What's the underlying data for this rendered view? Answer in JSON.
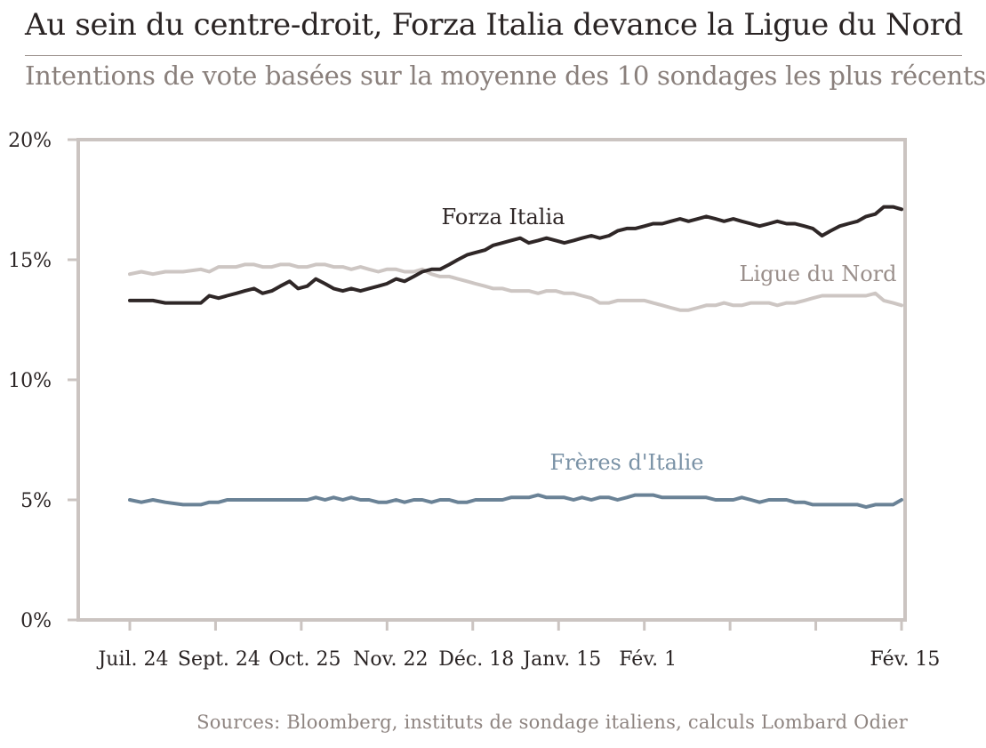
{
  "title": "Au sein du centre-droit, Forza Italia devance la Ligue du Nord",
  "subtitle": "Intentions de vote basées sur la moyenne des 10 sondages les plus récents",
  "source": "Sources: Bloomberg, instituts de sondage italiens, calculs Lombard Odier",
  "colors": {
    "frame": "#cbc4c1",
    "forza": "#2f2727",
    "ligue": "#cdc6c3",
    "freres": "#6a8296",
    "ligue_label": "#9a8f8b",
    "freres_label": "#7a92a6"
  },
  "chart_data": {
    "type": "line",
    "ylim": [
      0,
      20
    ],
    "yticks": [
      0,
      5,
      10,
      15,
      20
    ],
    "ytick_labels": [
      "0%",
      "5%",
      "10%",
      "15%",
      "20%"
    ],
    "xlim": [
      0,
      100
    ],
    "xticks": [
      {
        "x": 0,
        "label": "Juil. 24"
      },
      {
        "x": 11.11,
        "label": "Sept. 24"
      },
      {
        "x": 22.22,
        "label": "Oct. 25"
      },
      {
        "x": 33.33,
        "label": "Nov. 22"
      },
      {
        "x": 44.44,
        "label": "Déc. 18"
      },
      {
        "x": 55.56,
        "label": "Janv. 15"
      },
      {
        "x": 66.67,
        "label": "Fév. 1"
      },
      {
        "x": 77.78,
        "label": ""
      },
      {
        "x": 88.89,
        "label": ""
      },
      {
        "x": 100,
        "label": "Fév. 15"
      }
    ],
    "series": [
      {
        "name": "Forza Italia",
        "color_key": "forza",
        "x": [
          0,
          1.5,
          3,
          4.6,
          6.9,
          9.2,
          10.3,
          11.5,
          12.6,
          13.8,
          14.9,
          16.1,
          17.2,
          18.4,
          19.5,
          20.7,
          21.8,
          23,
          24.1,
          25.3,
          26.4,
          27.6,
          28.7,
          29.9,
          31,
          32.2,
          33.3,
          34.5,
          35.6,
          36.8,
          37.9,
          39.1,
          40.2,
          41.4,
          42.5,
          43.7,
          44.8,
          46,
          47.1,
          48.3,
          49.4,
          50.6,
          51.7,
          52.9,
          54,
          55.2,
          56.3,
          57.5,
          58.6,
          59.8,
          60.9,
          62.1,
          63.2,
          64.4,
          65.5,
          66.7,
          67.8,
          69,
          70.1,
          71.3,
          72.4,
          73.6,
          74.7,
          75.9,
          77,
          78.2,
          79.3,
          80.5,
          81.6,
          82.8,
          83.9,
          85.1,
          86.2,
          87.4,
          88.5,
          89.7,
          90.8,
          92,
          93.1,
          94.3,
          95.4,
          96.6,
          97.7,
          98.9,
          100
        ],
        "values": [
          13.3,
          13.3,
          13.3,
          13.2,
          13.2,
          13.2,
          13.5,
          13.4,
          13.5,
          13.6,
          13.7,
          13.8,
          13.6,
          13.7,
          13.9,
          14.1,
          13.8,
          13.9,
          14.2,
          14.0,
          13.8,
          13.7,
          13.8,
          13.7,
          13.8,
          13.9,
          14.0,
          14.2,
          14.1,
          14.3,
          14.5,
          14.6,
          14.6,
          14.8,
          15.0,
          15.2,
          15.3,
          15.4,
          15.6,
          15.7,
          15.8,
          15.9,
          15.7,
          15.8,
          15.9,
          15.8,
          15.7,
          15.8,
          15.9,
          16.0,
          15.9,
          16.0,
          16.2,
          16.3,
          16.3,
          16.4,
          16.5,
          16.5,
          16.6,
          16.7,
          16.6,
          16.7,
          16.8,
          16.7,
          16.6,
          16.7,
          16.6,
          16.5,
          16.4,
          16.5,
          16.6,
          16.5,
          16.5,
          16.4,
          16.3,
          16.0,
          16.2,
          16.4,
          16.5,
          16.6,
          16.8,
          16.9,
          17.2,
          17.2,
          17.1
        ]
      },
      {
        "name": "Ligue du Nord",
        "color_key": "ligue",
        "x": [
          0,
          1.5,
          3,
          4.6,
          6.9,
          9.2,
          10.3,
          11.5,
          12.6,
          13.8,
          14.9,
          16.1,
          17.2,
          18.4,
          19.5,
          20.7,
          21.8,
          23,
          24.1,
          25.3,
          26.4,
          27.6,
          28.7,
          29.9,
          31,
          32.2,
          33.3,
          34.5,
          35.6,
          36.8,
          37.9,
          39.1,
          40.2,
          41.4,
          42.5,
          43.7,
          44.8,
          46,
          47.1,
          48.3,
          49.4,
          50.6,
          51.7,
          52.9,
          54,
          55.2,
          56.3,
          57.5,
          58.6,
          59.8,
          60.9,
          62.1,
          63.2,
          64.4,
          65.5,
          66.7,
          67.8,
          69,
          70.1,
          71.3,
          72.4,
          73.6,
          74.7,
          75.9,
          77,
          78.2,
          79.3,
          80.5,
          81.6,
          82.8,
          83.9,
          85.1,
          86.2,
          87.4,
          88.5,
          89.7,
          90.8,
          92,
          93.1,
          94.3,
          95.4,
          96.6,
          97.7,
          98.9,
          100
        ],
        "values": [
          14.4,
          14.5,
          14.4,
          14.5,
          14.5,
          14.6,
          14.5,
          14.7,
          14.7,
          14.7,
          14.8,
          14.8,
          14.7,
          14.7,
          14.8,
          14.8,
          14.7,
          14.7,
          14.8,
          14.8,
          14.7,
          14.7,
          14.6,
          14.7,
          14.6,
          14.5,
          14.6,
          14.6,
          14.5,
          14.5,
          14.6,
          14.4,
          14.3,
          14.3,
          14.2,
          14.1,
          14.0,
          13.9,
          13.8,
          13.8,
          13.7,
          13.7,
          13.7,
          13.6,
          13.7,
          13.7,
          13.6,
          13.6,
          13.5,
          13.4,
          13.2,
          13.2,
          13.3,
          13.3,
          13.3,
          13.3,
          13.2,
          13.1,
          13.0,
          12.9,
          12.9,
          13.0,
          13.1,
          13.1,
          13.2,
          13.1,
          13.1,
          13.2,
          13.2,
          13.2,
          13.1,
          13.2,
          13.2,
          13.3,
          13.4,
          13.5,
          13.5,
          13.5,
          13.5,
          13.5,
          13.5,
          13.6,
          13.3,
          13.2,
          13.1
        ]
      },
      {
        "name": "Frères d'Italie",
        "color_key": "freres",
        "x": [
          0,
          1.5,
          3,
          4.6,
          6.9,
          9.2,
          10.3,
          11.5,
          12.6,
          13.8,
          14.9,
          16.1,
          17.2,
          18.4,
          19.5,
          20.7,
          21.8,
          23,
          24.1,
          25.3,
          26.4,
          27.6,
          28.7,
          29.9,
          31,
          32.2,
          33.3,
          34.5,
          35.6,
          36.8,
          37.9,
          39.1,
          40.2,
          41.4,
          42.5,
          43.7,
          44.8,
          46,
          47.1,
          48.3,
          49.4,
          50.6,
          51.7,
          52.9,
          54,
          55.2,
          56.3,
          57.5,
          58.6,
          59.8,
          60.9,
          62.1,
          63.2,
          64.4,
          65.5,
          66.7,
          67.8,
          69,
          70.1,
          71.3,
          72.4,
          73.6,
          74.7,
          75.9,
          77,
          78.2,
          79.3,
          80.5,
          81.6,
          82.8,
          83.9,
          85.1,
          86.2,
          87.4,
          88.5,
          89.7,
          90.8,
          92,
          93.1,
          94.3,
          95.4,
          96.6,
          97.7,
          98.9,
          100
        ],
        "values": [
          5.0,
          4.9,
          5.0,
          4.9,
          4.8,
          4.8,
          4.9,
          4.9,
          5.0,
          5.0,
          5.0,
          5.0,
          5.0,
          5.0,
          5.0,
          5.0,
          5.0,
          5.0,
          5.1,
          5.0,
          5.1,
          5.0,
          5.1,
          5.0,
          5.0,
          4.9,
          4.9,
          5.0,
          4.9,
          5.0,
          5.0,
          4.9,
          5.0,
          5.0,
          4.9,
          4.9,
          5.0,
          5.0,
          5.0,
          5.0,
          5.1,
          5.1,
          5.1,
          5.2,
          5.1,
          5.1,
          5.1,
          5.0,
          5.1,
          5.0,
          5.1,
          5.1,
          5.0,
          5.1,
          5.2,
          5.2,
          5.2,
          5.1,
          5.1,
          5.1,
          5.1,
          5.1,
          5.1,
          5.0,
          5.0,
          5.0,
          5.1,
          5.0,
          4.9,
          5.0,
          5.0,
          5.0,
          4.9,
          4.9,
          4.8,
          4.8,
          4.8,
          4.8,
          4.8,
          4.8,
          4.7,
          4.8,
          4.8,
          4.8,
          5.0
        ]
      }
    ]
  }
}
